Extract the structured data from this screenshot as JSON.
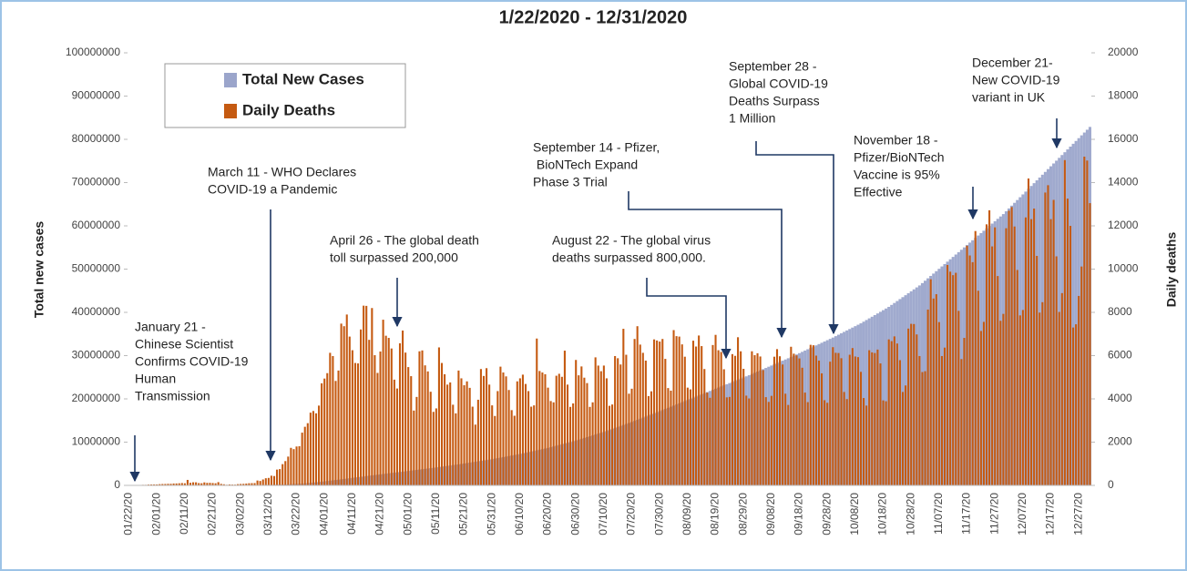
{
  "chart_data": {
    "type": "bar",
    "title": "1/22/2020 - 12/31/2020",
    "ylabel": "Total new cases",
    "y2label": "Daily deaths",
    "ylim": [
      0,
      100000000
    ],
    "yticks": [
      0,
      10000000,
      20000000,
      30000000,
      40000000,
      50000000,
      60000000,
      70000000,
      80000000,
      90000000,
      100000000
    ],
    "y2lim": [
      0,
      20000
    ],
    "y2ticks": [
      0,
      2000,
      4000,
      6000,
      8000,
      10000,
      12000,
      14000,
      16000,
      18000,
      20000
    ],
    "legend": "upper left",
    "categories": [
      "01/22/20",
      null,
      null,
      null,
      null,
      null,
      null,
      null,
      null,
      null,
      "02/01/20",
      null,
      null,
      null,
      null,
      null,
      null,
      null,
      null,
      null,
      "02/11/20",
      null,
      null,
      null,
      null,
      null,
      null,
      null,
      null,
      null,
      "02/21/20",
      null,
      null,
      null,
      null,
      null,
      null,
      null,
      null,
      null,
      "03/02/20",
      null,
      null,
      null,
      null,
      null,
      null,
      null,
      null,
      null,
      "03/12/20",
      null,
      null,
      null,
      null,
      null,
      null,
      null,
      null,
      null,
      "03/22/20",
      null,
      null,
      null,
      null,
      null,
      null,
      null,
      null,
      null,
      "04/01/20",
      null,
      null,
      null,
      null,
      null,
      null,
      null,
      null,
      null,
      "04/11/20",
      null,
      null,
      null,
      null,
      null,
      null,
      null,
      null,
      null,
      "04/21/20",
      null,
      null,
      null,
      null,
      null,
      null,
      null,
      null,
      null,
      "05/01/20",
      null,
      null,
      null,
      null,
      null,
      null,
      null,
      null,
      null,
      "05/11/20",
      null,
      null,
      null,
      null,
      null,
      null,
      null,
      null,
      null,
      "05/21/20",
      null,
      null,
      null,
      null,
      null,
      null,
      null,
      null,
      null,
      "05/31/20",
      null,
      null,
      null,
      null,
      null,
      null,
      null,
      null,
      null,
      "06/10/20",
      null,
      null,
      null,
      null,
      null,
      null,
      null,
      null,
      null,
      "06/20/20",
      null,
      null,
      null,
      null,
      null,
      null,
      null,
      null,
      null,
      "06/30/20",
      null,
      null,
      null,
      null,
      null,
      null,
      null,
      null,
      null,
      "07/10/20",
      null,
      null,
      null,
      null,
      null,
      null,
      null,
      null,
      null,
      "07/20/20",
      null,
      null,
      null,
      null,
      null,
      null,
      null,
      null,
      null,
      "07/30/20",
      null,
      null,
      null,
      null,
      null,
      null,
      null,
      null,
      null,
      "08/09/20",
      null,
      null,
      null,
      null,
      null,
      null,
      null,
      null,
      null,
      "08/19/20",
      null,
      null,
      null,
      null,
      null,
      null,
      null,
      null,
      null,
      "08/29/20",
      null,
      null,
      null,
      null,
      null,
      null,
      null,
      null,
      null,
      "09/08/20",
      null,
      null,
      null,
      null,
      null,
      null,
      null,
      null,
      null,
      "09/18/20",
      null,
      null,
      null,
      null,
      null,
      null,
      null,
      null,
      null,
      "09/28/20",
      null,
      null,
      null,
      null,
      null,
      null,
      null,
      null,
      null,
      "10/08/20",
      null,
      null,
      null,
      null,
      null,
      null,
      null,
      null,
      null,
      "10/18/20",
      null,
      null,
      null,
      null,
      null,
      null,
      null,
      null,
      null,
      "10/28/20",
      null,
      null,
      null,
      null,
      null,
      null,
      null,
      null,
      null,
      "11/07/20",
      null,
      null,
      null,
      null,
      null,
      null,
      null,
      null,
      null,
      "11/17/20",
      null,
      null,
      null,
      null,
      null,
      null,
      null,
      null,
      null,
      "11/27/20",
      null,
      null,
      null,
      null,
      null,
      null,
      null,
      null,
      null,
      "12/07/20",
      null,
      null,
      null,
      null,
      null,
      null,
      null,
      null,
      null,
      "12/17/20",
      null,
      null,
      null,
      null,
      null,
      null,
      null,
      null,
      null,
      "12/27/20",
      null,
      null,
      null,
      null
    ],
    "series": [
      {
        "name": "Total New Cases",
        "color": "#9ba5cb",
        "values": [
          555,
          654,
          941,
          1434,
          2118,
          2927,
          5578,
          6166,
          8234,
          9927,
          12038,
          16787,
          19881,
          23892,
          27635,
          30794,
          34391,
          37120,
          40150,
          42762,
          44802,
          45221,
          60368,
          66885,
          69030,
          71224,
          73258,
          75136,
          75639,
          76197,
          76819,
          78572,
          78958,
          79561,
          80406,
          81388,
          82746,
          84112,
          86011,
          88369,
          90306,
          92840,
          95120,
          97886,
          101801,
          105847,
          109821,
          113590,
          118620,
          125875,
          128352,
          145205,
          156101,
          167454,
          181574,
          197102,
          214821,
          242570,
          272208,
          304507,
          336953,
          378235,
          418045,
          467653,
          529591,
          593291,
          660706,
          720117,
          782365,
          857487,
          932605,
          1013466,
          1095917,
          1176060,
          1249754,
          1321481,
          1396476,
          1479804,
          1565278,
          1657526,
          1735650,
          1834721,
          1904838,
          1976191,
          2056054,
          2152437,
          2240190,
          2317759,
          2401378,
          2472259,
          2549294,
          2624074,
          2708885,
          2795731,
          2881140,
          2955033,
          3023722,
          3097229,
          3172287,
          3256846,
          3340000,
          3420000,
          3500000,
          3580000,
          3660000,
          3740000,
          3820000,
          3900000,
          3980000,
          4060000,
          4150000,
          4240000,
          4330000,
          4420000,
          4510000,
          4600000,
          4690000,
          4780000,
          4870000,
          4960000,
          5060000,
          5160000,
          5260000,
          5360000,
          5460000,
          5560000,
          5660000,
          5760000,
          5860000,
          5960000,
          6060000,
          6180000,
          6300000,
          6420000,
          6540000,
          6660000,
          6780000,
          6900000,
          7020000,
          7140000,
          7260000,
          7400000,
          7540000,
          7680000,
          7820000,
          7960000,
          8100000,
          8240000,
          8380000,
          8520000,
          8660000,
          8830000,
          9000000,
          9170000,
          9340000,
          9510000,
          9680000,
          9850000,
          10020000,
          10190000,
          10360000,
          10560000,
          10760000,
          10960000,
          11160000,
          11360000,
          11560000,
          11760000,
          11960000,
          12160000,
          12360000,
          12590000,
          12820000,
          13050000,
          13280000,
          13510000,
          13740000,
          13970000,
          14200000,
          14430000,
          14660000,
          14910000,
          15160000,
          15410000,
          15660000,
          15910000,
          16160000,
          16410000,
          16660000,
          16910000,
          17160000,
          17410000,
          17670000,
          17930000,
          18190000,
          18450000,
          18710000,
          18970000,
          19230000,
          19490000,
          19750000,
          20010000,
          20270000,
          20530000,
          20790000,
          21050000,
          21310000,
          21570000,
          21830000,
          22090000,
          22350000,
          22610000,
          22870000,
          23130000,
          23390000,
          23650000,
          23910000,
          24170000,
          24430000,
          24690000,
          24950000,
          25210000,
          25470000,
          25750000,
          26030000,
          26310000,
          26590000,
          26870000,
          27150000,
          27430000,
          27710000,
          27990000,
          28270000,
          28550000,
          28830000,
          29110000,
          29390000,
          29670000,
          29970000,
          30270000,
          30570000,
          30870000,
          31170000,
          31470000,
          31770000,
          32070000,
          32370000,
          32670000,
          32970000,
          33270000,
          33570000,
          33870000,
          34170000,
          34500000,
          34830000,
          35160000,
          35490000,
          35820000,
          36150000,
          36480000,
          36810000,
          37140000,
          37470000,
          37850000,
          38230000,
          38610000,
          38990000,
          39370000,
          39750000,
          40130000,
          40510000,
          40890000,
          41270000,
          41720000,
          42170000,
          42620000,
          43070000,
          43520000,
          43970000,
          44420000,
          44870000,
          45320000,
          45770000,
          46220000,
          46770000,
          47320000,
          47870000,
          48420000,
          48970000,
          49520000,
          50070000,
          50620000,
          51170000,
          51720000,
          52270000,
          52820000,
          53370000,
          53920000,
          54470000,
          55020000,
          55570000,
          56120000,
          56670000,
          57220000,
          57770000,
          58320000,
          58870000,
          59420000,
          59970000,
          60520000,
          61070000,
          61620000,
          62170000,
          62720000,
          63370000,
          64020000,
          64670000,
          65320000,
          65970000,
          66620000,
          67270000,
          67920000,
          68570000,
          69220000,
          69870000,
          70520000,
          71170000,
          71820000,
          72470000,
          73120000,
          73770000,
          74420000,
          75070000,
          75720000,
          76370000,
          77020000,
          77670000,
          78320000,
          78970000,
          79620000,
          80270000,
          80920000,
          81570000,
          82220000,
          82870000
        ]
      },
      {
        "name": "Daily Deaths",
        "color": "#c55a11",
        "axis": "y2",
        "values": [
          17,
          1,
          8,
          16,
          14,
          26,
          26,
          38,
          43,
          46,
          45,
          57,
          64,
          66,
          73,
          73,
          86,
          89,
          97,
          108,
          97,
          254,
          121,
          143,
          142,
          106,
          98,
          139,
          115,
          118,
          109,
          97,
          150,
          71,
          52,
          29,
          44,
          37,
          35,
          58,
          67,
          72,
          84,
          98,
          103,
          105,
          225,
          204,
          273,
          331,
          346,
          448,
          433,
          730,
          754,
          983,
          1124,
          1332,
          1736,
          1676,
          1798,
          1813,
          2439,
          2710,
          2876,
          3363,
          3440,
          3332,
          3690,
          4720,
          4940,
          5190,
          6130,
          5980,
          4830,
          5310,
          7480,
          7360,
          7900,
          6880,
          6250,
          5660,
          5640,
          7210,
          8310,
          8300,
          6730,
          8200,
          6020,
          5200,
          6190,
          7660,
          6920,
          6820,
          6330,
          4890,
          4480,
          6570,
          7160,
          6140,
          5470,
          5050,
          3460,
          4090,
          6200,
          6240,
          5550,
          5270,
          4330,
          3400,
          3560,
          6380,
          5660,
          5140,
          4660,
          4760,
          3730,
          3330,
          5310,
          4950,
          4630,
          4810,
          4510,
          3640,
          2810,
          3960,
          5380,
          5060,
          5420,
          4660,
          3700,
          3210,
          4360,
          5490,
          5220,
          5040,
          4410,
          3480,
          3220,
          4810,
          4950,
          5120,
          4690,
          4360,
          3640,
          3700,
          6790,
          5290,
          5220,
          5140,
          4520,
          3900,
          3840,
          5070,
          5160,
          5020,
          6230,
          4660,
          3630,
          3790,
          5800,
          5090,
          5500,
          4980,
          4730,
          3630,
          3840,
          5920,
          5540,
          5280,
          5540,
          4950,
          3680,
          3740,
          5980,
          5880,
          5590,
          7240,
          6040,
          4240,
          4470,
          6770,
          7360,
          6510,
          6130,
          5770,
          4130,
          4350,
          6750,
          6700,
          6650,
          6770,
          5850,
          4500,
          4380,
          7180,
          6900,
          6880,
          6520,
          5950,
          4520,
          4440,
          6690,
          6420,
          6930,
          6440,
          5380,
          4290,
          4050,
          6490,
          6960,
          6250,
          6170,
          5370,
          4070,
          4090,
          6070,
          5990,
          6850,
          6200,
          5390,
          4150,
          4020,
          6200,
          6020,
          6110,
          5960,
          5330,
          4080,
          3860,
          4140,
          5950,
          6300,
          5970,
          5590,
          4240,
          3720,
          6410,
          6090,
          6010,
          5870,
          5440,
          4290,
          3850,
          6500,
          6480,
          6000,
          5770,
          5180,
          3940,
          3820,
          5720,
          6390,
          6130,
          6120,
          5880,
          4320,
          3990,
          6040,
          6350,
          5960,
          5930,
          5250,
          4040,
          3690,
          6250,
          6150,
          6120,
          6280,
          5640,
          3930,
          3890,
          6750,
          6670,
          6890,
          6560,
          5790,
          4320,
          4620,
          7250,
          7470,
          7460,
          6980,
          5980,
          5240,
          5280,
          8130,
          9530,
          8640,
          8840,
          7550,
          5980,
          6370,
          10190,
          9880,
          9720,
          9830,
          8070,
          5840,
          6820,
          11080,
          10630,
          10320,
          11760,
          9000,
          7140,
          7560,
          12070,
          12720,
          11050,
          11930,
          9680,
          7610,
          7930,
          11890,
          12700,
          12870,
          11970,
          9960,
          7860,
          8110,
          12390,
          14190,
          12310,
          12800,
          10610,
          7990,
          8470,
          13540,
          13880,
          12310,
          13200,
          10590,
          8020,
          8890,
          15040,
          13260,
          12000,
          7300,
          7450,
          8760,
          10120,
          15200,
          15020,
          13050
        ]
      }
    ],
    "annotations": [
      {
        "lines": [
          "January 21 -",
          "Chinese Scientist",
          "Confirms COVID-19",
          "Human",
          "Transmission"
        ]
      },
      {
        "lines": [
          "March 11 - WHO Declares",
          "COVID-19 a Pandemic"
        ]
      },
      {
        "lines": [
          "April 26 - The global death",
          "toll surpassed 200,000"
        ]
      },
      {
        "lines": [
          "August 22 - The global virus",
          "deaths surpassed 800,000."
        ]
      },
      {
        "lines": [
          "September 14 - Pfizer,",
          " BioNTech Expand",
          "Phase 3 Trial"
        ]
      },
      {
        "lines": [
          "September 28 -",
          "Global COVID-19",
          "Deaths Surpass",
          "1 Million"
        ]
      },
      {
        "lines": [
          "November 18 -",
          "Pfizer/BioNTech",
          "Vaccine is 95%",
          "Effective"
        ]
      },
      {
        "lines": [
          "December 21-",
          "New COVID-19",
          "variant in UK"
        ]
      }
    ]
  }
}
